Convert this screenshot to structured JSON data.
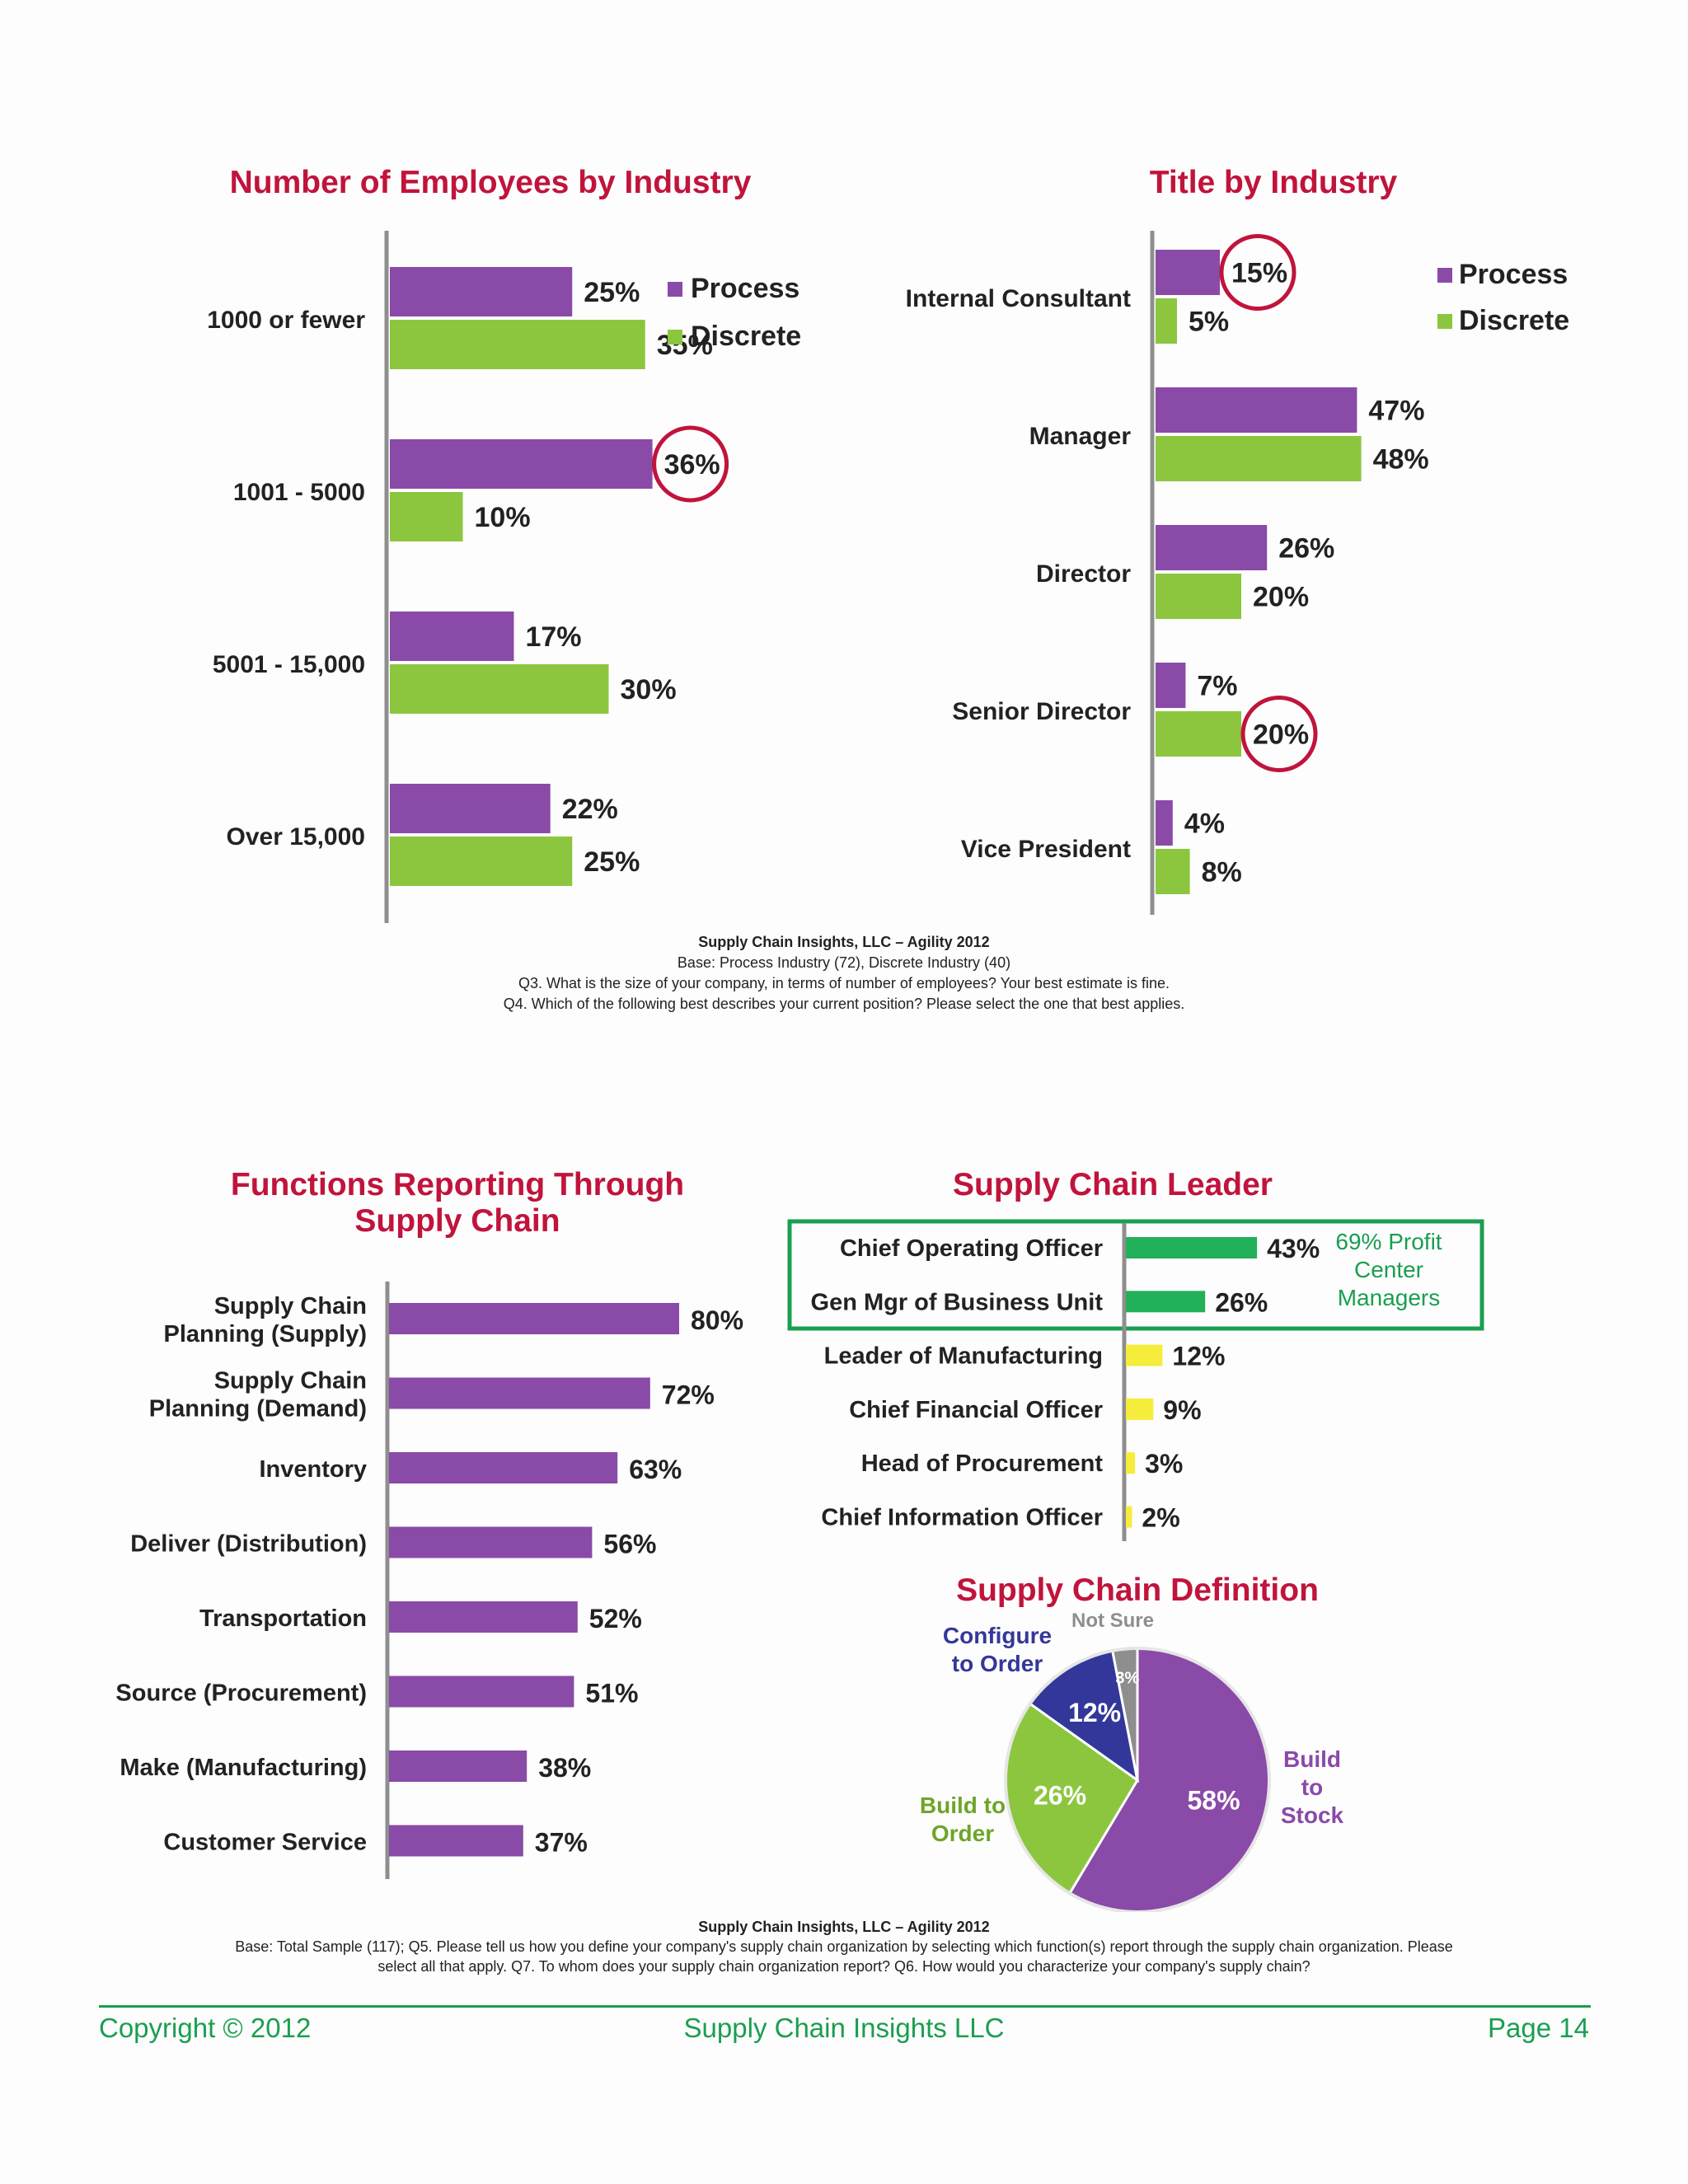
{
  "colors": {
    "process": "#8a4aa8",
    "discrete": "#8cc63f",
    "title": "#c0143c",
    "green_highlight": "#1a9e50",
    "green_bar": "#22b05a",
    "yellow_bar": "#f6ec3c",
    "pie_build_to_stock": "#8a4aa8",
    "pie_build_to_order": "#8cc63f",
    "pie_configure_to_order": "#34379a",
    "pie_not_sure": "#8e8e8e",
    "circle": "#c0143c"
  },
  "chart_data": [
    {
      "id": "employees",
      "type": "bar",
      "orientation": "horizontal",
      "title": "Number of Employees by Industry",
      "categories": [
        "1000 or fewer",
        "1001 - 5000",
        "5001 - 15,000",
        "Over 15,000"
      ],
      "series": [
        {
          "name": "Process",
          "values": [
            25,
            36,
            17,
            22
          ],
          "labels": [
            "25%",
            "36%",
            "17%",
            "22%"
          ]
        },
        {
          "name": "Discrete",
          "values": [
            35,
            10,
            30,
            25
          ],
          "labels": [
            "35%",
            "10%",
            "30%",
            "25%"
          ]
        }
      ],
      "highlighted": [
        {
          "series": "Process",
          "category": "1001 - 5000"
        }
      ],
      "legend": "top-right"
    },
    {
      "id": "title",
      "type": "bar",
      "orientation": "horizontal",
      "title": "Title by Industry",
      "categories": [
        "Internal Consultant",
        "Manager",
        "Director",
        "Senior Director",
        "Vice President"
      ],
      "series": [
        {
          "name": "Process",
          "values": [
            15,
            47,
            26,
            7,
            4
          ],
          "labels": [
            "15%",
            "47%",
            "26%",
            "7%",
            "4%"
          ]
        },
        {
          "name": "Discrete",
          "values": [
            5,
            48,
            20,
            20,
            8
          ],
          "labels": [
            "5%",
            "48%",
            "20%",
            "20%",
            "8%"
          ]
        }
      ],
      "highlighted": [
        {
          "series": "Process",
          "category": "Internal Consultant"
        },
        {
          "series": "Discrete",
          "category": "Senior Director"
        }
      ],
      "legend": "top-right"
    },
    {
      "id": "functions",
      "type": "bar",
      "orientation": "horizontal",
      "title": "Functions Reporting Through Supply Chain",
      "categories": [
        "Supply Chain Planning (Supply)",
        "Supply Chain Planning (Demand)",
        "Inventory",
        "Deliver (Distribution)",
        "Transportation",
        "Source (Procurement)",
        "Make (Manufacturing)",
        "Customer Service"
      ],
      "values": [
        80,
        72,
        63,
        56,
        52,
        51,
        38,
        37
      ],
      "labels": [
        "80%",
        "72%",
        "63%",
        "56%",
        "52%",
        "51%",
        "38%",
        "37%"
      ]
    },
    {
      "id": "leader",
      "type": "bar",
      "orientation": "horizontal",
      "title": "Supply Chain Leader",
      "categories": [
        "Chief Operating Officer",
        "Gen Mgr of Business Unit",
        "Leader of Manufacturing",
        "Chief Financial Officer",
        "Head of Procurement",
        "Chief Information Officer"
      ],
      "values": [
        43,
        26,
        12,
        9,
        3,
        2
      ],
      "labels": [
        "43%",
        "26%",
        "12%",
        "9%",
        "3%",
        "2%"
      ],
      "group_note": "69% Profit Center Managers",
      "group_note_lines": [
        "69% Profit",
        "Center",
        "Managers"
      ]
    },
    {
      "id": "definition",
      "type": "pie",
      "title": "Supply Chain Definition",
      "slices": [
        {
          "name": "Build to Stock",
          "value": 58,
          "label": "58%",
          "name_lines": [
            "Build",
            "to",
            "Stock"
          ]
        },
        {
          "name": "Build to Order",
          "value": 26,
          "label": "26%",
          "name_lines": [
            "Build to",
            "Order"
          ]
        },
        {
          "name": "Configure to Order",
          "value": 12,
          "label": "12%",
          "name_lines": [
            "Configure",
            "to Order"
          ]
        },
        {
          "name": "Not Sure",
          "value": 3,
          "label": "3%",
          "name_lines": [
            "Not Sure"
          ]
        }
      ]
    }
  ],
  "notes_top": {
    "source": "Supply Chain Insights, LLC – Agility 2012",
    "base": "Base:  Process Industry (72), Discrete Industry (40)",
    "q3": "Q3. What is the size of your company, in terms of number of employees? Your best estimate is fine.",
    "q4": "Q4. Which of the following best describes your current position? Please select the one that best applies."
  },
  "notes_bottom": {
    "source": "Supply Chain Insights, LLC – Agility 2012",
    "line1": "Base:  Total Sample (117); Q5. Please tell us how you define your company's supply chain organization by selecting which function(s) report through the supply chain organization.  Please",
    "line2": "select all that apply.  Q7. To whom does your supply chain organization report? Q6. How would you characterize your company's supply chain?"
  },
  "footer": {
    "copyright": "Copyright © 2012",
    "company": "Supply Chain Insights LLC",
    "page": "Page 14"
  }
}
